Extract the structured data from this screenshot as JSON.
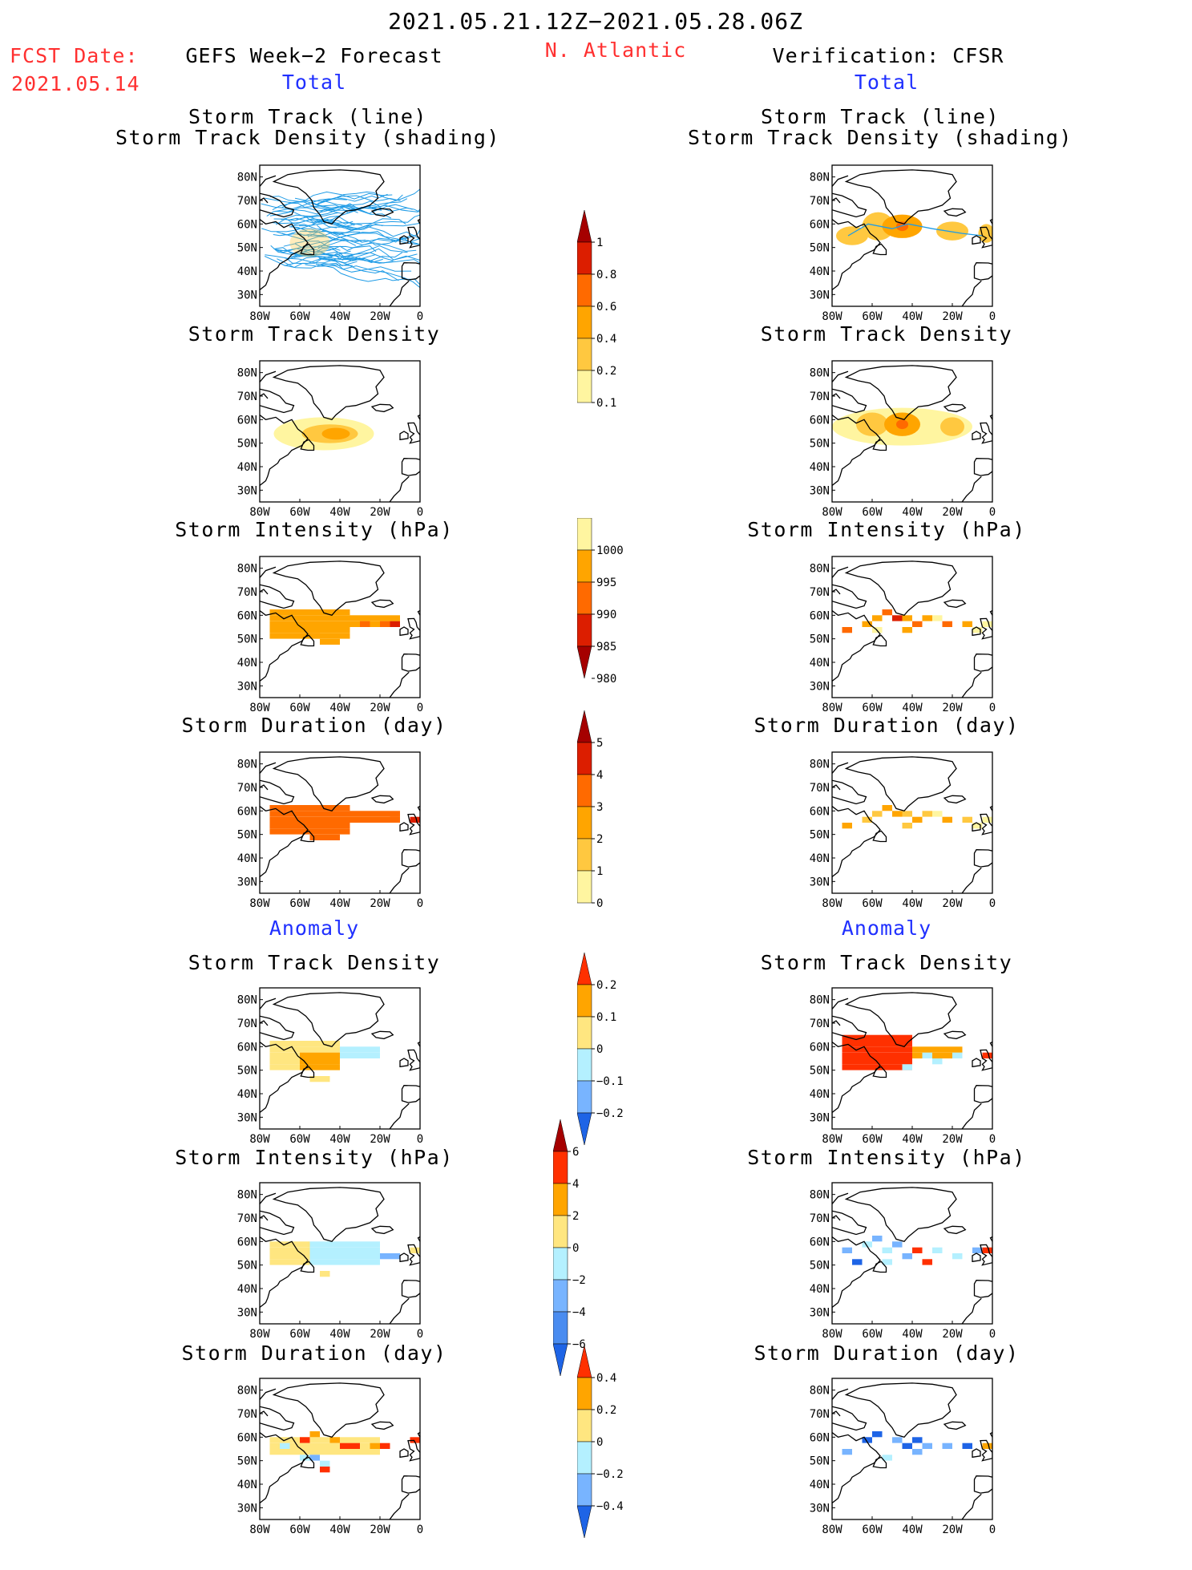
{
  "header": {
    "date_range": "2021.05.21.12Z−2021.05.28.06Z",
    "region": "N. Atlantic",
    "fcst_label": "FCST Date:",
    "fcst_date": "2021.05.14",
    "left_title": "GEFS Week−2 Forecast",
    "right_title": "Verification: CFSR"
  },
  "sections": {
    "total": "Total",
    "anomaly": "Anomaly"
  },
  "panel_titles": {
    "track_line": "Storm Track (line)",
    "track_shading": "Storm Track Density (shading)",
    "density": "Storm Track Density",
    "intensity": "Storm Intensity (hPa)",
    "duration": "Storm Duration (day)"
  },
  "axes": {
    "lat_ticks": [
      "80N",
      "70N",
      "60N",
      "50N",
      "40N",
      "30N"
    ],
    "lon_ticks": [
      "80W",
      "60W",
      "40W",
      "20W",
      "0"
    ]
  },
  "colorbars": [
    {
      "id": "density_total",
      "labels": [
        "1",
        "0.8",
        "0.6",
        "0.4",
        "0.2",
        "0.1"
      ],
      "colors": [
        "#a50000",
        "#dc1e00",
        "#ff6a00",
        "#ffa500",
        "#ffc840",
        "#fff5a0"
      ]
    },
    {
      "id": "intensity_total",
      "labels": [
        "1000",
        "995",
        "990",
        "985",
        "980"
      ],
      "colors": [
        "#fff5a0",
        "#ffa500",
        "#ff6a00",
        "#dc1e00",
        "#a50000"
      ]
    },
    {
      "id": "duration_total",
      "labels": [
        "5",
        "4",
        "3",
        "2",
        "1",
        "0"
      ],
      "colors": [
        "#a50000",
        "#dc1e00",
        "#ff6a00",
        "#ffa500",
        "#ffc840",
        "#fff5a0"
      ]
    },
    {
      "id": "density_anom",
      "labels": [
        "0.2",
        "0.1",
        "0",
        "−0.1",
        "−0.2"
      ],
      "colors": [
        "#ff3000",
        "#ffa500",
        "#ffe680",
        "#b4f0ff",
        "#78b4ff",
        "#1e64e6"
      ]
    },
    {
      "id": "intensity_anom",
      "labels": [
        "6",
        "4",
        "2",
        "0",
        "−2",
        "−4",
        "−6"
      ],
      "colors": [
        "#a50000",
        "#ff3000",
        "#ffa500",
        "#ffe680",
        "#b4f0ff",
        "#78b4ff",
        "#4a8cf0",
        "#1e64e6"
      ]
    },
    {
      "id": "duration_anom",
      "labels": [
        "0.4",
        "0.2",
        "0",
        "−0.2",
        "−0.4"
      ],
      "colors": [
        "#ff3000",
        "#ffa500",
        "#ffe680",
        "#b4f0ff",
        "#78b4ff",
        "#1e64e6"
      ]
    }
  ],
  "colors": {
    "title_red": "#ff3030",
    "section_blue": "#2030ff",
    "track_blue": "#1e9be6"
  }
}
